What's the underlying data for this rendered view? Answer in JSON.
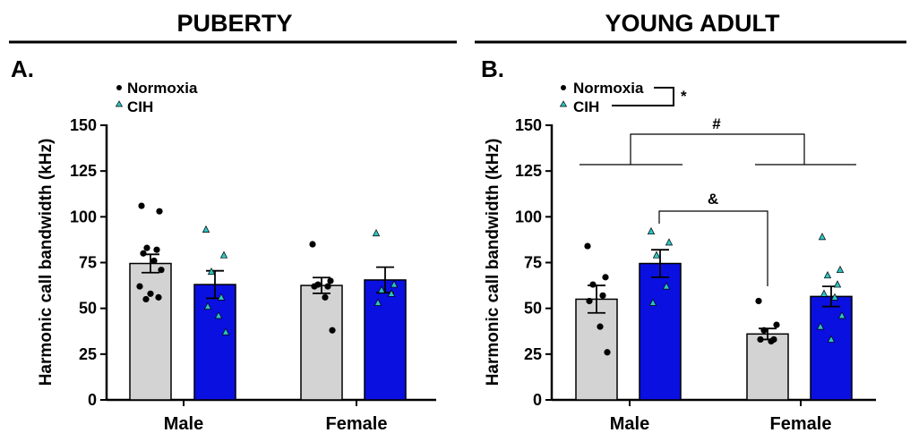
{
  "colors": {
    "normoxia_bar": "#d3d3d3",
    "cih_bar": "#0a10e0",
    "normoxia_point": "#000000",
    "cih_point": "#2ec4c4"
  },
  "chart_data": [
    {
      "type": "bar",
      "header": "PUBERTY",
      "panel_label": "A.",
      "ylabel": "Harmonic call bandwidth (kHz)",
      "ylim": [
        0,
        150
      ],
      "yticks": [
        "0",
        "25",
        "50",
        "75",
        "100",
        "125",
        "150"
      ],
      "categories": [
        "Male",
        "Female"
      ],
      "legend": {
        "placement": "top-left",
        "entries": [
          "Normoxia",
          "CIH"
        ]
      },
      "series": [
        {
          "name": "Normoxia",
          "values": [
            74.5,
            62.5
          ],
          "sem": [
            5.0,
            4.3
          ],
          "points": [
            [
              106,
              103,
              83,
              82,
              80,
              76,
              71,
              62,
              58,
              56,
              55
            ],
            [
              85,
              65,
              63,
              62,
              62,
              56,
              38
            ]
          ]
        },
        {
          "name": "CIH",
          "values": [
            63,
            65.5
          ],
          "sem": [
            7.5,
            7.0
          ],
          "points": [
            [
              93,
              79,
              70,
              56,
              51,
              46,
              37
            ],
            [
              91,
              63,
              60,
              58,
              53
            ]
          ]
        }
      ],
      "annotations": []
    },
    {
      "type": "bar",
      "header": "YOUNG  ADULT",
      "panel_label": "B.",
      "ylabel": "Harmonic call bandwidth (kHz)",
      "ylim": [
        0,
        150
      ],
      "yticks": [
        "0",
        "25",
        "50",
        "75",
        "100",
        "125",
        "150"
      ],
      "categories": [
        "Male",
        "Female"
      ],
      "legend": {
        "placement": "top-left",
        "entries": [
          "Normoxia",
          "CIH"
        ],
        "significance": "*"
      },
      "series": [
        {
          "name": "Normoxia",
          "values": [
            55,
            36
          ],
          "sem": [
            7.5,
            3.0
          ],
          "points": [
            [
              84,
              67,
              63,
              57,
              54,
              40,
              26
            ],
            [
              54,
              41,
              38,
              33,
              33,
              32
            ]
          ]
        },
        {
          "name": "CIH",
          "values": [
            74.5,
            56.5
          ],
          "sem": [
            7.5,
            5.5
          ],
          "points": [
            [
              92,
              86,
              79,
              62,
              53
            ],
            [
              89,
              71,
              68,
              63,
              58,
              56,
              46,
              40,
              33
            ]
          ]
        }
      ],
      "annotations": [
        "#",
        "&"
      ]
    }
  ]
}
